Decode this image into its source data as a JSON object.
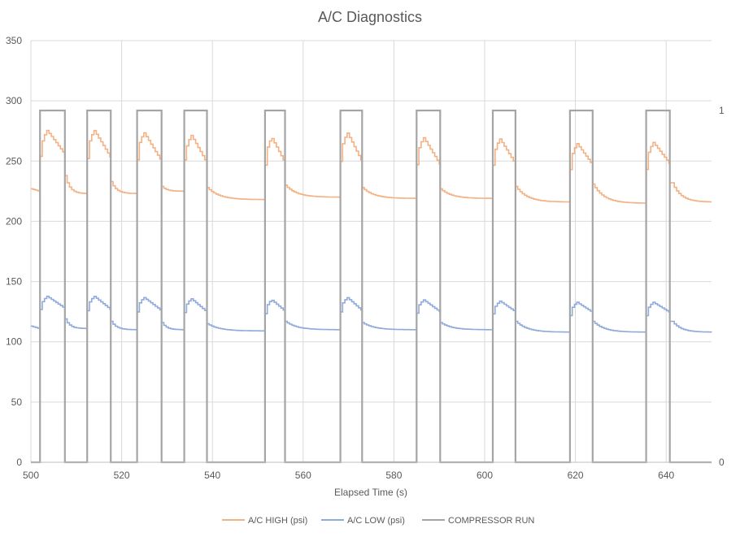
{
  "chart_data": {
    "type": "line",
    "title": "A/C Diagnostics",
    "xlabel": "Elapsed Time (s)",
    "ylabel": "",
    "y2label": "",
    "xlim": [
      500,
      650
    ],
    "ylim": [
      0,
      350
    ],
    "y2lim": [
      0,
      1
    ],
    "x_ticks": [
      500,
      520,
      540,
      560,
      580,
      600,
      620,
      640
    ],
    "y_ticks": [
      0,
      50,
      100,
      150,
      200,
      250,
      300,
      350
    ],
    "y2_ticks": [
      0,
      1
    ],
    "grid": true,
    "legend_position": "bottom",
    "cycles": [
      {
        "on": 502.0,
        "off": 507.5
      },
      {
        "on": 512.4,
        "off": 517.6
      },
      {
        "on": 523.4,
        "off": 528.8
      },
      {
        "on": 533.8,
        "off": 538.8
      },
      {
        "on": 551.6,
        "off": 556.0
      },
      {
        "on": 568.2,
        "off": 573.0
      },
      {
        "on": 585.0,
        "off": 590.2
      },
      {
        "on": 601.8,
        "off": 606.8
      },
      {
        "on": 618.8,
        "off": 623.8
      },
      {
        "on": 635.6,
        "off": 640.8
      }
    ],
    "series": [
      {
        "name": "A/C HIGH (psi)",
        "axis": "left",
        "color": "#F4B183",
        "start": 227,
        "rest_end": [
          223,
          223,
          225,
          218,
          220,
          219,
          219,
          216,
          215,
          216
        ],
        "peak": [
          276,
          276,
          274,
          272,
          270,
          274,
          270,
          269,
          265,
          266
        ],
        "drop": [
          238,
          233,
          229,
          228,
          230,
          228,
          227,
          229,
          231,
          232
        ]
      },
      {
        "name": "A/C LOW (psi)",
        "axis": "left",
        "color": "#8FAADC",
        "start": 113,
        "rest_end": [
          111,
          110,
          110,
          109,
          110,
          110,
          110,
          108,
          108,
          108
        ],
        "peak": [
          138,
          138,
          137,
          136,
          135,
          137,
          135,
          134,
          133,
          133
        ],
        "drop": [
          119,
          117,
          116,
          115,
          117,
          116,
          116,
          117,
          117,
          117
        ]
      },
      {
        "name": "COMPRESSOR RUN",
        "axis": "right",
        "color": "#A5A5A5",
        "values_desc": "1 between each cycle on/off, otherwise 0"
      }
    ]
  }
}
